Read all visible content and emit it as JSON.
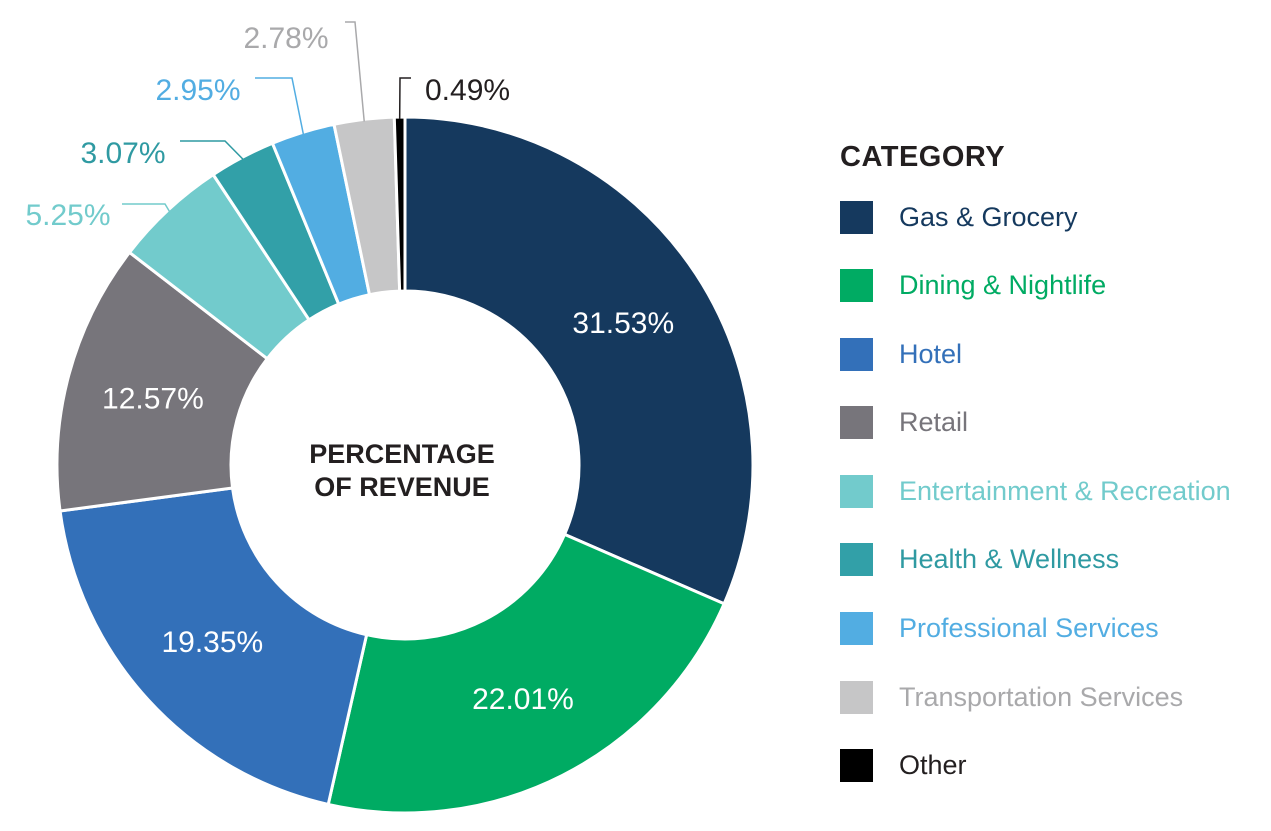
{
  "chart_data": {
    "type": "pie",
    "variant": "donut",
    "center_text": [
      "PERCENTAGE",
      "OF REVENUE"
    ],
    "legend_title": "CATEGORY",
    "legend_placement": "right",
    "slices": [
      {
        "name": "Gas & Grocery",
        "value": 31.53,
        "label": "31.53%",
        "color": "#15395e",
        "label_color": "#15395e"
      },
      {
        "name": "Dining & Nightlife",
        "value": 22.01,
        "label": "22.01%",
        "color": "#00ab63",
        "label_color": "#00ab63"
      },
      {
        "name": "Hotel",
        "value": 19.35,
        "label": "19.35%",
        "color": "#3370b9",
        "label_color": "#3370b9"
      },
      {
        "name": "Retail",
        "value": 12.57,
        "label": "12.57%",
        "color": "#77757b",
        "label_color": "#77757b"
      },
      {
        "name": "Entertainment & Recreation",
        "value": 5.25,
        "label": "5.25%",
        "color": "#72cbcc",
        "label_color": "#72cbcc"
      },
      {
        "name": "Health & Wellness",
        "value": 3.07,
        "label": "3.07%",
        "color": "#32a0a8",
        "label_color": "#2f9aa2"
      },
      {
        "name": "Professional Services",
        "value": 2.95,
        "label": "2.95%",
        "color": "#52ade2",
        "label_color": "#52ade2"
      },
      {
        "name": "Transportation Services",
        "value": 2.78,
        "label": "2.78%",
        "color": "#c6c6c7",
        "label_color": "#a9a9ab"
      },
      {
        "name": "Other",
        "value": 0.49,
        "label": "0.49%",
        "color": "#000000",
        "label_color": "#231f20"
      }
    ]
  }
}
